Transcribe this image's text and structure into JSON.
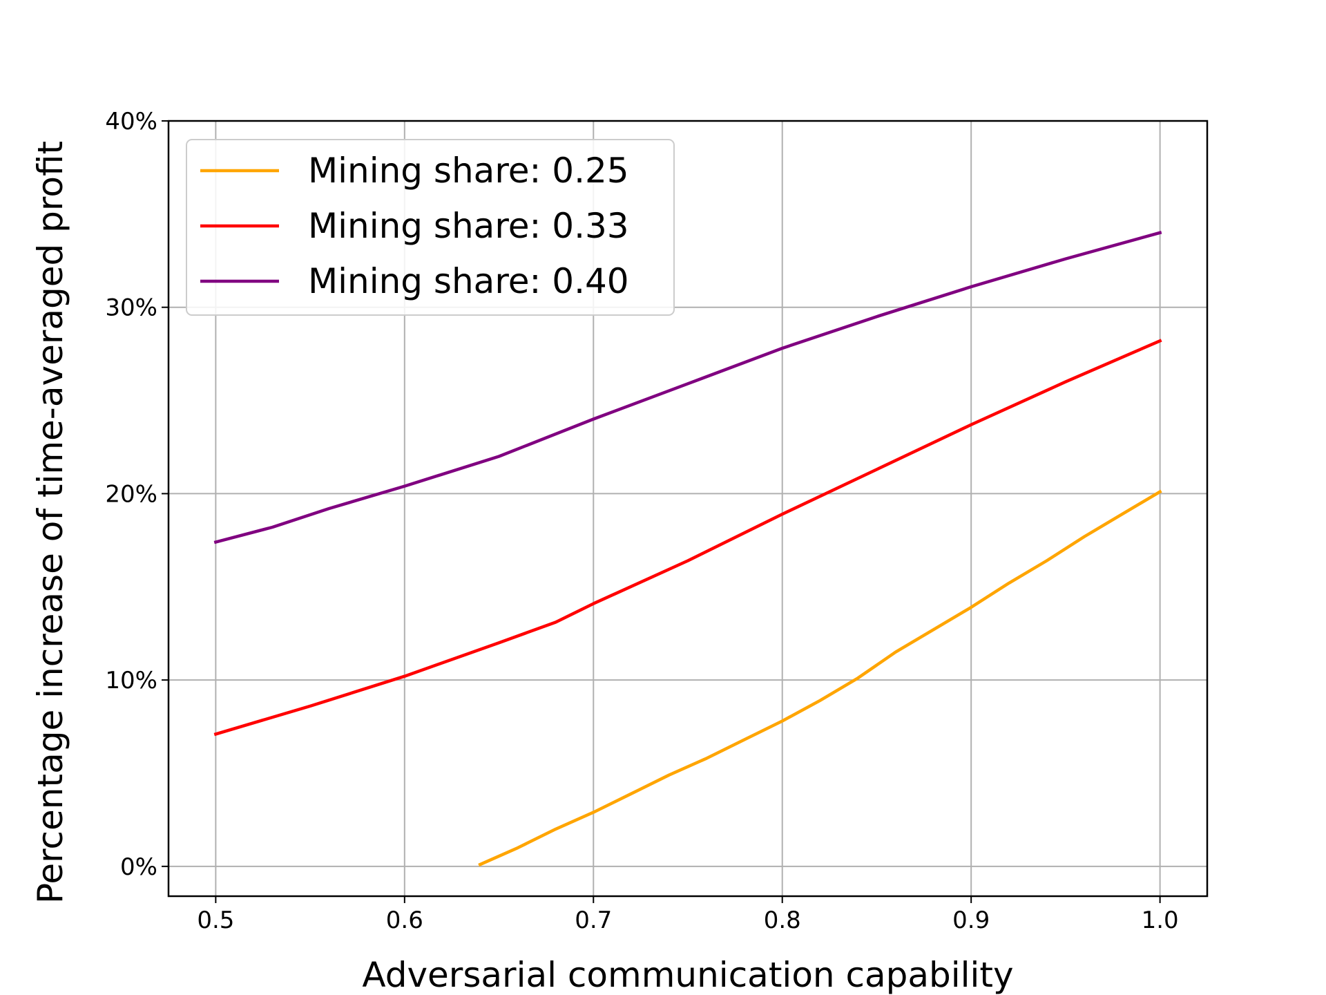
{
  "chart_data": {
    "type": "line",
    "title": "",
    "xlabel": "Adversarial communication capability",
    "ylabel": "Percentage increase of time-averaged profit",
    "xlim": [
      0.475,
      1.025
    ],
    "ylim": [
      -1.6,
      40
    ],
    "xticks": [
      {
        "value": 0.5,
        "label": "0.5"
      },
      {
        "value": 0.6,
        "label": "0.6"
      },
      {
        "value": 0.7,
        "label": "0.7"
      },
      {
        "value": 0.8,
        "label": "0.8"
      },
      {
        "value": 0.9,
        "label": "0.9"
      },
      {
        "value": 1.0,
        "label": "1.0"
      }
    ],
    "yticks": [
      {
        "value": 0,
        "label": "0%"
      },
      {
        "value": 10,
        "label": "10%"
      },
      {
        "value": 20,
        "label": "20%"
      },
      {
        "value": 30,
        "label": "30%"
      },
      {
        "value": 40,
        "label": "40%"
      }
    ],
    "grid": true,
    "legend_position": "upper-left",
    "series": [
      {
        "name": "Mining share: 0.25",
        "color": "#FFA500",
        "x": [
          0.64,
          0.66,
          0.68,
          0.7,
          0.72,
          0.74,
          0.76,
          0.78,
          0.8,
          0.82,
          0.84,
          0.86,
          0.88,
          0.9,
          0.92,
          0.94,
          0.96,
          0.98,
          1.0
        ],
        "y": [
          0.1,
          1.0,
          2.0,
          2.9,
          3.9,
          4.9,
          5.8,
          6.8,
          7.8,
          8.9,
          10.1,
          11.5,
          12.7,
          13.9,
          15.2,
          16.4,
          17.7,
          18.9,
          20.1
        ]
      },
      {
        "name": "Mining share: 0.33",
        "color": "#FF0000",
        "x": [
          0.5,
          0.55,
          0.6,
          0.65,
          0.68,
          0.7,
          0.75,
          0.8,
          0.85,
          0.9,
          0.95,
          1.0
        ],
        "y": [
          7.1,
          8.6,
          10.2,
          12.0,
          13.1,
          14.1,
          16.4,
          18.9,
          21.3,
          23.7,
          26.0,
          28.2
        ]
      },
      {
        "name": "Mining share: 0.40",
        "color": "#800080",
        "x": [
          0.5,
          0.53,
          0.56,
          0.6,
          0.65,
          0.7,
          0.75,
          0.8,
          0.85,
          0.9,
          0.95,
          1.0
        ],
        "y": [
          17.4,
          18.2,
          19.2,
          20.4,
          22.0,
          24.0,
          25.9,
          27.8,
          29.5,
          31.1,
          32.6,
          34.0
        ]
      }
    ]
  }
}
